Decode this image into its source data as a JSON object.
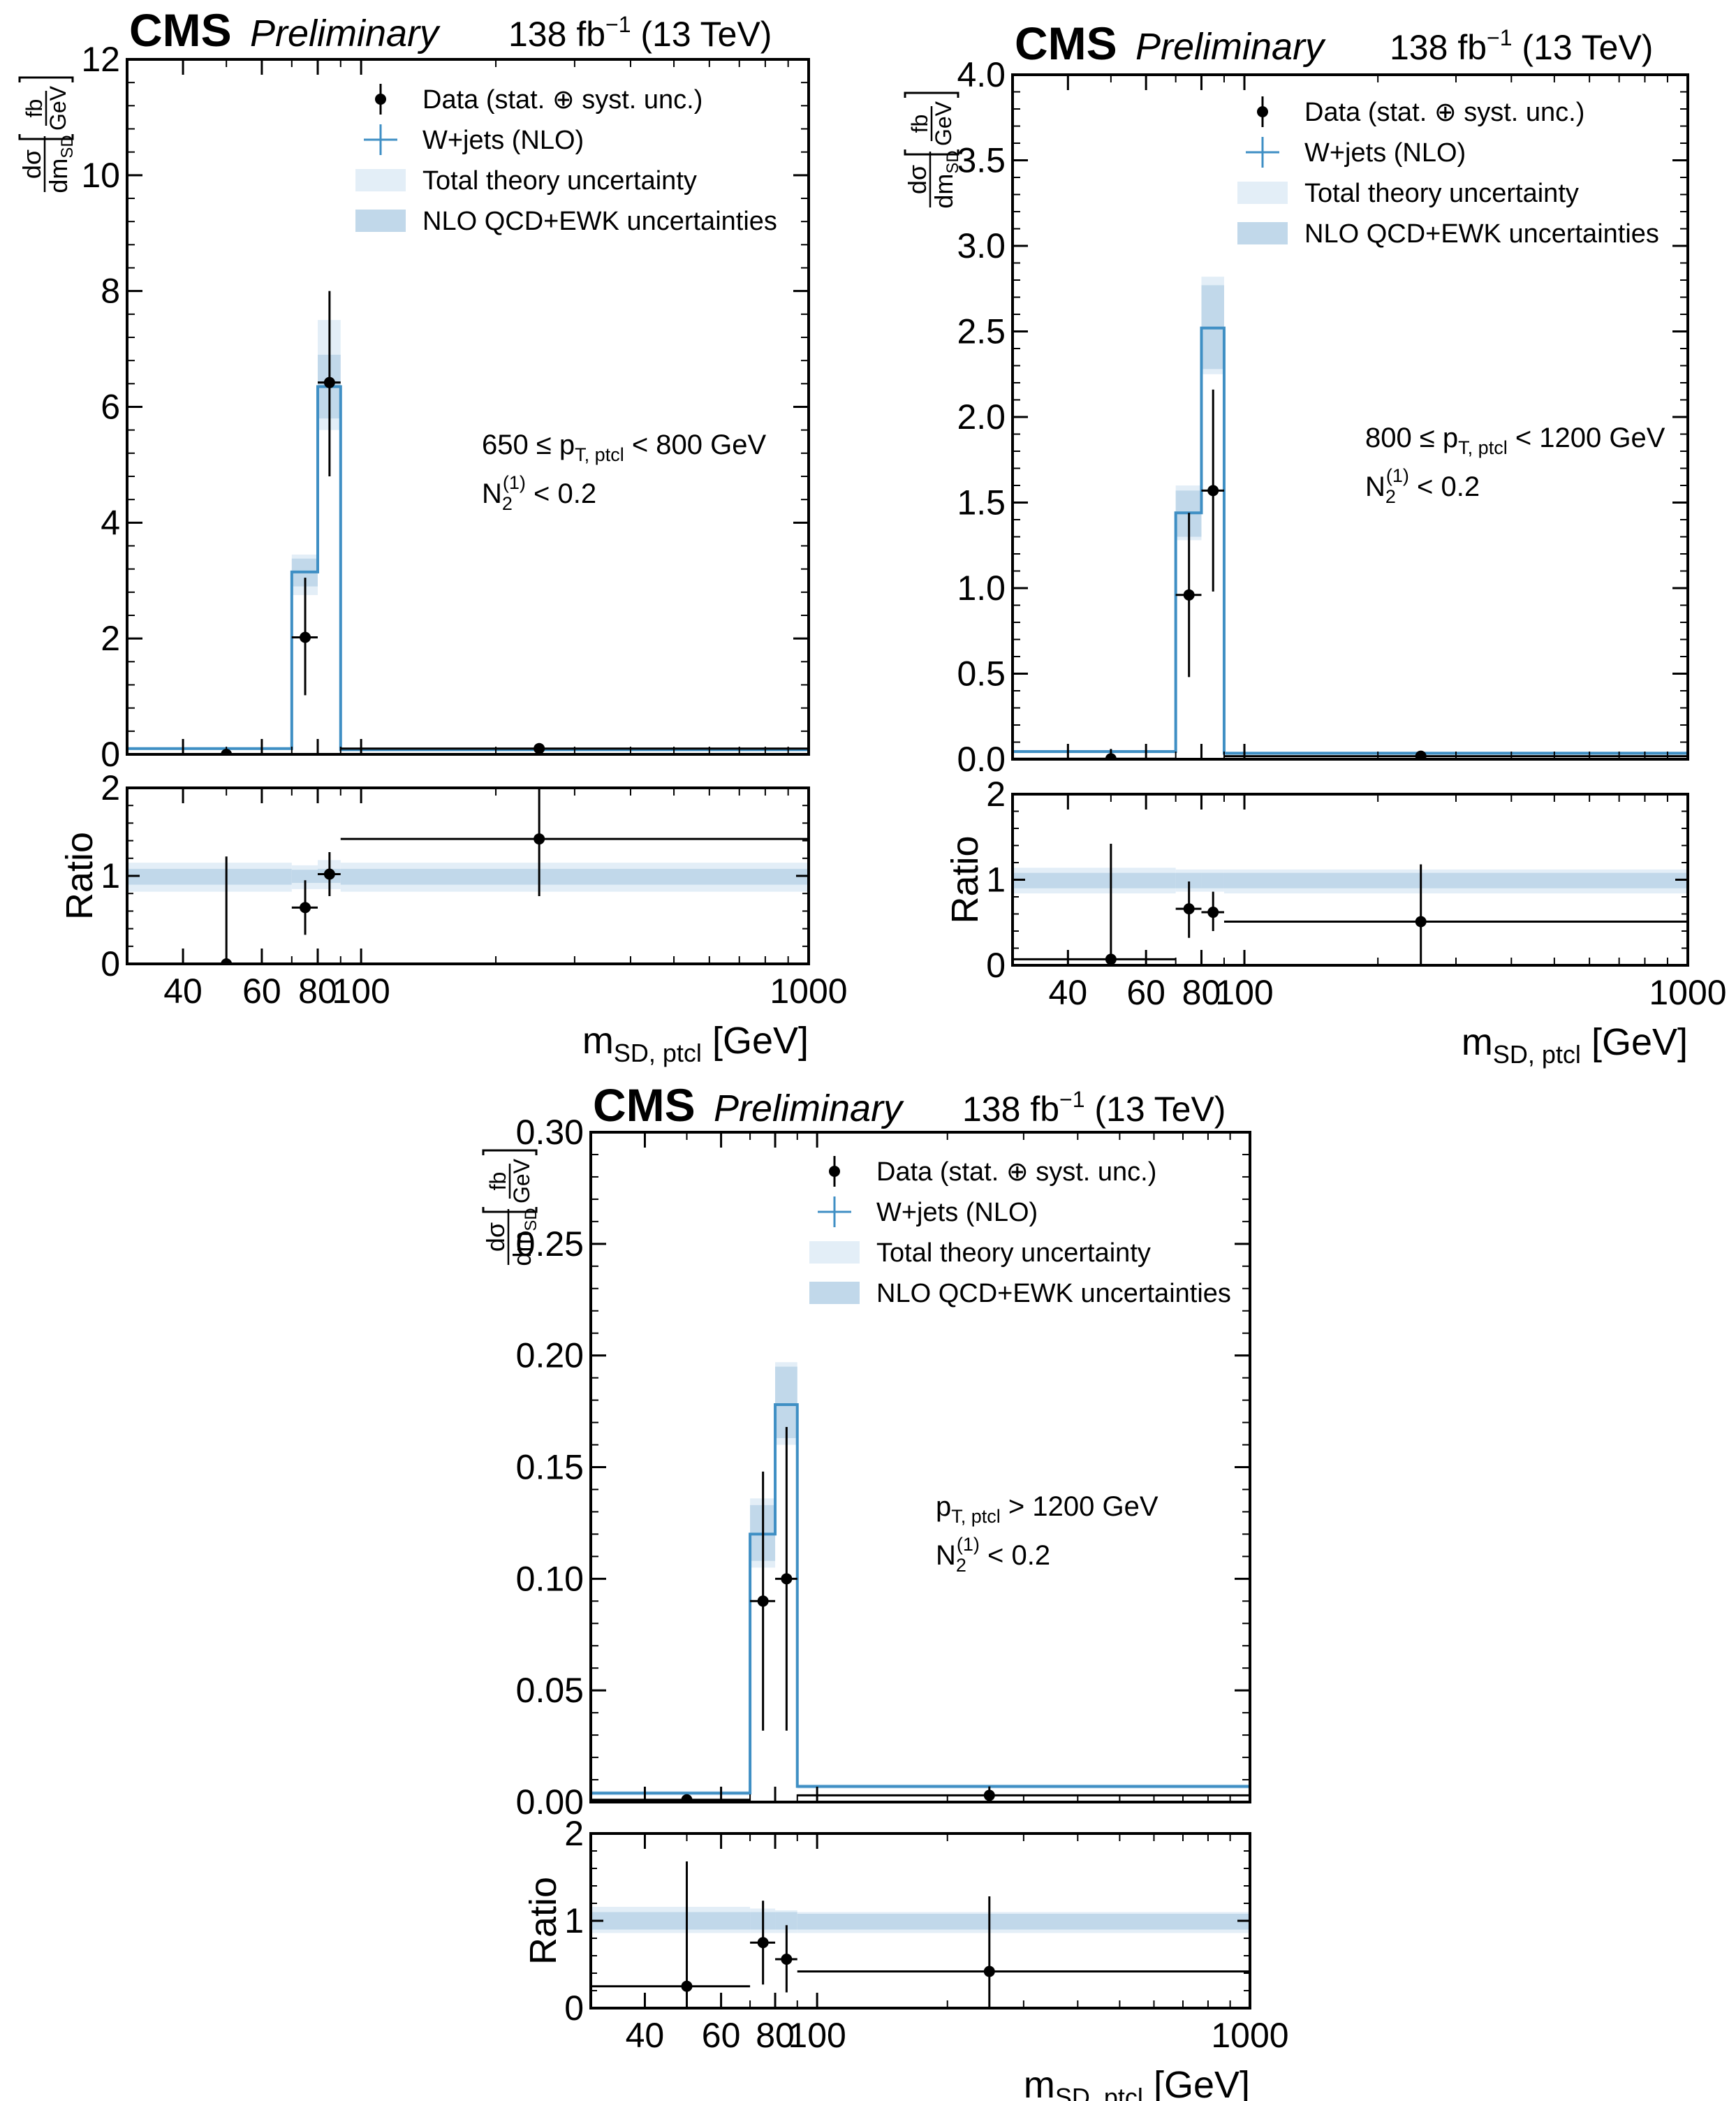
{
  "common": {
    "experiment": "CMS",
    "status": "Preliminary",
    "lumi_value": "138 fb",
    "lumi_exp": "−1",
    "energy": "(13 TeV)",
    "ylabel_num": "dσ",
    "ylabel_den": "dm",
    "ylabel_den_sub": "SD",
    "ylabel_unit_num": "fb",
    "ylabel_unit_den": "GeV",
    "ratio_label": "Ratio",
    "xlabel_main": "m",
    "xlabel_sub": "SD, ptcl",
    "xlabel_unit": "[GeV]",
    "cut_n2_base": "N",
    "cut_n2_sub": "2",
    "cut_n2_sup": "(1)",
    "cut_n2_rest": "< 0.2",
    "legend": {
      "data": "Data (stat. ⊕ syst. unc.)",
      "mc": "W+jets (NLO)",
      "total": "Total theory uncertainty",
      "nlo": "NLO QCD+EWK uncertainties"
    },
    "colors": {
      "mc": "#3f8fc4",
      "band_total": "#e3eef7",
      "band_nlo": "#c1d8ea",
      "data": "#000000"
    }
  },
  "chart_data": [
    {
      "type": "histogram",
      "x_scale": "log",
      "x_range": [
        30,
        1000
      ],
      "x_ticks": [
        40,
        60,
        80,
        100,
        1000
      ],
      "bin_edges": [
        30,
        70,
        80,
        90,
        1000
      ],
      "pt_label_prefix": "650 ≤ p",
      "pt_label_sub": "T, ptcl",
      "pt_label_suffix": "< 800 GeV",
      "main": {
        "ylim": [
          0,
          12
        ],
        "y_ticks": [
          0,
          2,
          4,
          6,
          8,
          10,
          12
        ],
        "mc_values": [
          0.1,
          3.15,
          6.35,
          0.08
        ],
        "mc_total_unc": [
          [
            0.08,
            0.12
          ],
          [
            2.75,
            3.45
          ],
          [
            5.6,
            7.5
          ],
          [
            0.06,
            0.1
          ]
        ],
        "mc_nlo_unc": [
          [
            0.09,
            0.11
          ],
          [
            2.9,
            3.38
          ],
          [
            5.8,
            6.9
          ],
          [
            0.07,
            0.09
          ]
        ],
        "data_x": [
          50,
          75,
          85,
          250
        ],
        "data_xerr": [
          [
            30,
            70
          ],
          [
            70,
            80
          ],
          [
            80,
            90
          ],
          [
            90,
            1000
          ]
        ],
        "data_y": [
          0.0,
          2.02,
          6.42,
          0.1
        ],
        "data_yerr": [
          [
            0.0,
            0.0
          ],
          [
            1.02,
            3.05
          ],
          [
            4.8,
            8.0
          ],
          [
            0.05,
            0.15
          ]
        ]
      },
      "ratio": {
        "ylim": [
          0,
          2
        ],
        "y_ticks": [
          0,
          1,
          2
        ],
        "total_band": [
          [
            0.82,
            1.15
          ],
          [
            0.85,
            1.12
          ],
          [
            0.85,
            1.18
          ],
          [
            0.82,
            1.15
          ]
        ],
        "nlo_band": [
          [
            0.9,
            1.08
          ],
          [
            0.92,
            1.07
          ],
          [
            0.92,
            1.08
          ],
          [
            0.9,
            1.08
          ]
        ],
        "data_y": [
          0.0,
          0.64,
          1.02,
          1.42
        ],
        "data_yerr": [
          [
            0.0,
            1.22
          ],
          [
            0.33,
            0.95
          ],
          [
            0.77,
            1.27
          ],
          [
            0.77,
            2.0
          ]
        ]
      }
    },
    {
      "type": "histogram",
      "x_scale": "log",
      "x_range": [
        30,
        1000
      ],
      "x_ticks": [
        40,
        60,
        80,
        100,
        1000
      ],
      "bin_edges": [
        30,
        70,
        80,
        90,
        1000
      ],
      "pt_label_prefix": "800 ≤ p",
      "pt_label_sub": "T, ptcl",
      "pt_label_suffix": "< 1200 GeV",
      "main": {
        "ylim": [
          0,
          4.0
        ],
        "y_ticks": [
          0.0,
          0.5,
          1.0,
          1.5,
          2.0,
          2.5,
          3.0,
          3.5,
          4.0
        ],
        "mc_values": [
          0.045,
          1.44,
          2.52,
          0.035
        ],
        "mc_total_unc": [
          [
            0.035,
            0.055
          ],
          [
            1.28,
            1.6
          ],
          [
            2.25,
            2.82
          ],
          [
            0.025,
            0.045
          ]
        ],
        "mc_nlo_unc": [
          [
            0.04,
            0.05
          ],
          [
            1.3,
            1.57
          ],
          [
            2.28,
            2.77
          ],
          [
            0.03,
            0.04
          ]
        ],
        "data_x": [
          50,
          75,
          85,
          250
        ],
        "data_xerr": [
          [
            30,
            70
          ],
          [
            70,
            80
          ],
          [
            80,
            90
          ],
          [
            90,
            1000
          ]
        ],
        "data_y": [
          0.003,
          0.96,
          1.57,
          0.018
        ],
        "data_yerr": [
          [
            0.0,
            0.06
          ],
          [
            0.48,
            1.44
          ],
          [
            0.98,
            2.16
          ],
          [
            0.0,
            0.036
          ]
        ]
      },
      "ratio": {
        "ylim": [
          0,
          2
        ],
        "y_ticks": [
          0,
          1,
          2
        ],
        "total_band": [
          [
            0.84,
            1.14
          ],
          [
            0.86,
            1.12
          ],
          [
            0.86,
            1.12
          ],
          [
            0.84,
            1.12
          ]
        ],
        "nlo_band": [
          [
            0.9,
            1.08
          ],
          [
            0.9,
            1.08
          ],
          [
            0.9,
            1.08
          ],
          [
            0.9,
            1.08
          ]
        ],
        "data_y": [
          0.07,
          0.66,
          0.62,
          0.51
        ],
        "data_yerr": [
          [
            0.0,
            1.42
          ],
          [
            0.32,
            0.98
          ],
          [
            0.4,
            0.86
          ],
          [
            0.0,
            1.18
          ]
        ]
      }
    },
    {
      "type": "histogram",
      "x_scale": "log",
      "x_range": [
        30,
        1000
      ],
      "x_ticks": [
        40,
        60,
        80,
        100,
        1000
      ],
      "bin_edges": [
        30,
        70,
        80,
        90,
        1000
      ],
      "pt_label_prefix": "p",
      "pt_label_sub": "T, ptcl",
      "pt_label_suffix": "> 1200 GeV",
      "main": {
        "ylim": [
          0,
          0.3
        ],
        "y_ticks": [
          0.0,
          0.05,
          0.1,
          0.15,
          0.2,
          0.25,
          0.3
        ],
        "mc_values": [
          0.004,
          0.12,
          0.178,
          0.007
        ],
        "mc_total_unc": [
          [
            0.003,
            0.005
          ],
          [
            0.105,
            0.136
          ],
          [
            0.16,
            0.197
          ],
          [
            0.006,
            0.008
          ]
        ],
        "mc_nlo_unc": [
          [
            0.0035,
            0.0045
          ],
          [
            0.108,
            0.133
          ],
          [
            0.163,
            0.195
          ],
          [
            0.0065,
            0.0075
          ]
        ],
        "data_x": [
          50,
          75,
          85,
          250
        ],
        "data_xerr": [
          [
            30,
            70
          ],
          [
            70,
            80
          ],
          [
            80,
            90
          ],
          [
            90,
            1000
          ]
        ],
        "data_y": [
          0.001,
          0.09,
          0.1,
          0.003
        ],
        "data_yerr": [
          [
            0.0,
            0.003
          ],
          [
            0.032,
            0.148
          ],
          [
            0.032,
            0.168
          ],
          [
            0.0,
            0.007
          ]
        ]
      },
      "ratio": {
        "ylim": [
          0,
          2
        ],
        "y_ticks": [
          0,
          1,
          2
        ],
        "total_band": [
          [
            0.86,
            1.16
          ],
          [
            0.86,
            1.14
          ],
          [
            0.86,
            1.12
          ],
          [
            0.86,
            1.1
          ]
        ],
        "nlo_band": [
          [
            0.9,
            1.1
          ],
          [
            0.9,
            1.1
          ],
          [
            0.9,
            1.1
          ],
          [
            0.9,
            1.08
          ]
        ],
        "data_y": [
          0.25,
          0.75,
          0.56,
          0.42
        ],
        "data_yerr": [
          [
            0.0,
            1.68
          ],
          [
            0.27,
            1.23
          ],
          [
            0.18,
            0.95
          ],
          [
            0.0,
            1.28
          ]
        ]
      }
    }
  ]
}
